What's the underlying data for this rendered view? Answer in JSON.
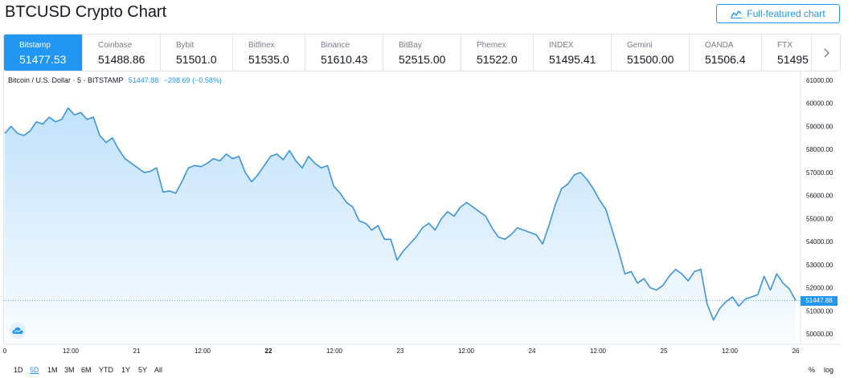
{
  "header": {
    "title": "BTCUSD Crypto Chart",
    "full_button": "Full-featured chart"
  },
  "exchanges": [
    {
      "name": "Bitstamp",
      "price": "51477.53",
      "active": true
    },
    {
      "name": "Coinbase",
      "price": "51488.86"
    },
    {
      "name": "Bybit",
      "price": "51501.0"
    },
    {
      "name": "Bitfinex",
      "price": "51535.0"
    },
    {
      "name": "Binance",
      "price": "51610.43"
    },
    {
      "name": "BitBay",
      "price": "52515.00"
    },
    {
      "name": "Phemex",
      "price": "51522.0"
    },
    {
      "name": "INDEX",
      "price": "51495.41"
    },
    {
      "name": "Gemini",
      "price": "51500.00"
    },
    {
      "name": "OANDA",
      "price": "51506.4"
    },
    {
      "name": "FTX",
      "price": "51495"
    }
  ],
  "legend": {
    "symbol": "Bitcoin / U.S. Dollar · 5 · BITSTAMP",
    "last": "51447.88",
    "change": "−298.69 (−0.58%)"
  },
  "price_tag": "51447.88",
  "ranges": [
    {
      "label": "1D"
    },
    {
      "label": "5D",
      "active": true
    },
    {
      "label": "1M"
    },
    {
      "label": "3M"
    },
    {
      "label": "6M"
    },
    {
      "label": "YTD"
    },
    {
      "label": "1Y"
    },
    {
      "label": "5Y"
    },
    {
      "label": "All"
    }
  ],
  "toggles": {
    "percent": "%",
    "log": "log"
  },
  "colors": {
    "accent": "#2196f3",
    "line": "#3d94dc"
  },
  "chart_data": {
    "type": "area",
    "y_ticks": [
      "61000.00",
      "60000.00",
      "59000.00",
      "58000.00",
      "57000.00",
      "56000.00",
      "55000.00",
      "54000.00",
      "53000.00",
      "52000.00",
      "51000.00",
      "50000.00"
    ],
    "ylim": [
      50000,
      61000
    ],
    "x_ticks": [
      "0",
      "12:00",
      "21",
      "12:00",
      "22",
      "12:00",
      "23",
      "12:00",
      "24",
      "12:00",
      "25",
      "12:00",
      "26"
    ],
    "x_bold": [
      "22"
    ],
    "last_value": 51447.88,
    "values": [
      58700,
      59000,
      58700,
      58600,
      58800,
      59200,
      59100,
      59400,
      59200,
      59300,
      59800,
      59500,
      59600,
      59300,
      59400,
      58600,
      58300,
      58500,
      58000,
      57600,
      57400,
      57200,
      57000,
      57050,
      57200,
      56150,
      56200,
      56100,
      56600,
      57200,
      57300,
      57250,
      57400,
      57600,
      57500,
      57800,
      57600,
      57700,
      57000,
      56600,
      56900,
      57300,
      57700,
      57800,
      57550,
      57950,
      57500,
      57200,
      57700,
      57400,
      57200,
      57300,
      56400,
      56100,
      55700,
      55500,
      54900,
      54800,
      54500,
      54700,
      54100,
      54100,
      53200,
      53600,
      53900,
      54200,
      54600,
      54800,
      54500,
      55000,
      55300,
      55100,
      55500,
      55700,
      55500,
      55300,
      55100,
      54600,
      54200,
      54100,
      54300,
      54600,
      54500,
      54400,
      54300,
      53900,
      54700,
      55600,
      56300,
      56500,
      56900,
      57000,
      56700,
      56300,
      55800,
      55400,
      54500,
      53600,
      52600,
      52700,
      52200,
      52400,
      52000,
      51900,
      52100,
      52500,
      52800,
      52600,
      52300,
      52700,
      52800,
      51300,
      50600,
      51100,
      51400,
      51600,
      51200,
      51500,
      51600,
      51700,
      52500,
      51900,
      52600,
      52200,
      51950,
      51447.88
    ]
  }
}
